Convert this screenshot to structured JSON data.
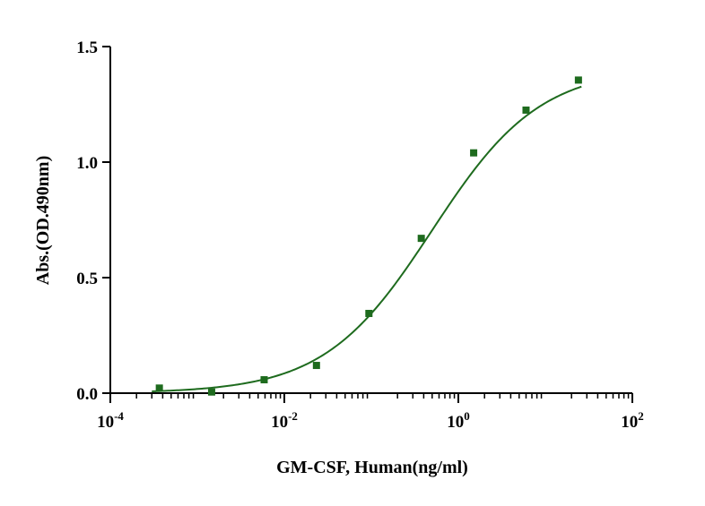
{
  "chart_data": {
    "type": "scatter",
    "xscale": "log",
    "xlabel": "GM-CSF, Human(ng/ml)",
    "ylabel": "Abs.(OD.490nm)",
    "xlim": [
      0.0001,
      100
    ],
    "ylim": [
      0,
      1.5
    ],
    "grid": false,
    "legend": "none",
    "x_ticks": [
      {
        "value": 0.0001,
        "base": "10",
        "exp": "-4"
      },
      {
        "value": 0.01,
        "base": "10",
        "exp": "-2"
      },
      {
        "value": 1,
        "base": "10",
        "exp": "0"
      },
      {
        "value": 100,
        "base": "10",
        "exp": "2"
      }
    ],
    "y_ticks": [
      {
        "value": 0,
        "label": "0.0"
      },
      {
        "value": 0.5,
        "label": "0.5"
      },
      {
        "value": 1.0,
        "label": "1.0"
      },
      {
        "value": 1.5,
        "label": "1.5"
      }
    ],
    "series": [
      {
        "color": "#1e6b1e",
        "marker": "square",
        "points": [
          {
            "x": 0.000366,
            "y": 0.022
          },
          {
            "x": 0.00146,
            "y": 0.005
          },
          {
            "x": 0.00586,
            "y": 0.058
          },
          {
            "x": 0.0234,
            "y": 0.12
          },
          {
            "x": 0.0938,
            "y": 0.345
          },
          {
            "x": 0.375,
            "y": 0.67
          },
          {
            "x": 1.5,
            "y": 1.04
          },
          {
            "x": 6.0,
            "y": 1.225
          },
          {
            "x": 24.0,
            "y": 1.355
          }
        ]
      }
    ],
    "fit_curve": {
      "type": "4PL",
      "color": "#1e6b1e",
      "bottom": 0.0,
      "top": 1.41,
      "ec50": 0.5,
      "hill": 0.7,
      "x_range": [
        0.0003,
        26
      ]
    }
  }
}
